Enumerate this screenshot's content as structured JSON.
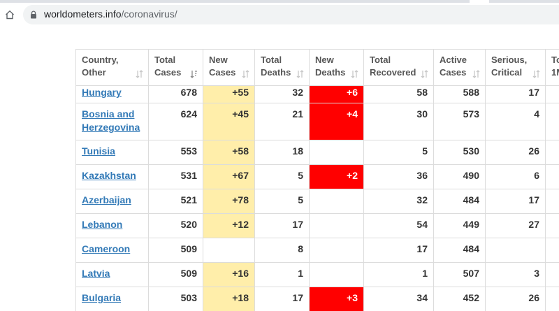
{
  "browser": {
    "url_domain": "worldometers.info",
    "url_path": "/coronavirus/"
  },
  "table": {
    "columns": [
      {
        "line1": "Country,",
        "line2": "Other"
      },
      {
        "line1": "Total",
        "line2": "Cases"
      },
      {
        "line1": "New",
        "line2": "Cases"
      },
      {
        "line1": "Total",
        "line2": "Deaths"
      },
      {
        "line1": "New",
        "line2": "Deaths"
      },
      {
        "line1": "Total",
        "line2": "Recovered"
      },
      {
        "line1": "Active",
        "line2": "Cases"
      },
      {
        "line1": "Serious,",
        "line2": "Critical"
      },
      {
        "line1": "To",
        "line2": "1M"
      }
    ],
    "rows": [
      {
        "country": "Hungary",
        "total_cases": "678",
        "new_cases": "+55",
        "total_deaths": "32",
        "new_deaths": "+6",
        "total_recovered": "58",
        "active_cases": "588",
        "serious_critical": "17"
      },
      {
        "country": "Bosnia and Herzegovina",
        "total_cases": "624",
        "new_cases": "+45",
        "total_deaths": "21",
        "new_deaths": "+4",
        "total_recovered": "30",
        "active_cases": "573",
        "serious_critical": "4"
      },
      {
        "country": "Tunisia",
        "total_cases": "553",
        "new_cases": "+58",
        "total_deaths": "18",
        "new_deaths": "",
        "total_recovered": "5",
        "active_cases": "530",
        "serious_critical": "26"
      },
      {
        "country": "Kazakhstan",
        "total_cases": "531",
        "new_cases": "+67",
        "total_deaths": "5",
        "new_deaths": "+2",
        "total_recovered": "36",
        "active_cases": "490",
        "serious_critical": "6"
      },
      {
        "country": "Azerbaijan",
        "total_cases": "521",
        "new_cases": "+78",
        "total_deaths": "5",
        "new_deaths": "",
        "total_recovered": "32",
        "active_cases": "484",
        "serious_critical": "17"
      },
      {
        "country": "Lebanon",
        "total_cases": "520",
        "new_cases": "+12",
        "total_deaths": "17",
        "new_deaths": "",
        "total_recovered": "54",
        "active_cases": "449",
        "serious_critical": "27"
      },
      {
        "country": "Cameroon",
        "total_cases": "509",
        "new_cases": "",
        "total_deaths": "8",
        "new_deaths": "",
        "total_recovered": "17",
        "active_cases": "484",
        "serious_critical": ""
      },
      {
        "country": "Latvia",
        "total_cases": "509",
        "new_cases": "+16",
        "total_deaths": "1",
        "new_deaths": "",
        "total_recovered": "1",
        "active_cases": "507",
        "serious_critical": "3"
      },
      {
        "country": "Bulgaria",
        "total_cases": "503",
        "new_cases": "+18",
        "total_deaths": "17",
        "new_deaths": "+3",
        "total_recovered": "34",
        "active_cases": "452",
        "serious_critical": "26"
      }
    ]
  },
  "colors": {
    "new_cases_bg": "#ffeeaa",
    "new_deaths_bg": "#ff0000",
    "link": "#337ab7"
  }
}
